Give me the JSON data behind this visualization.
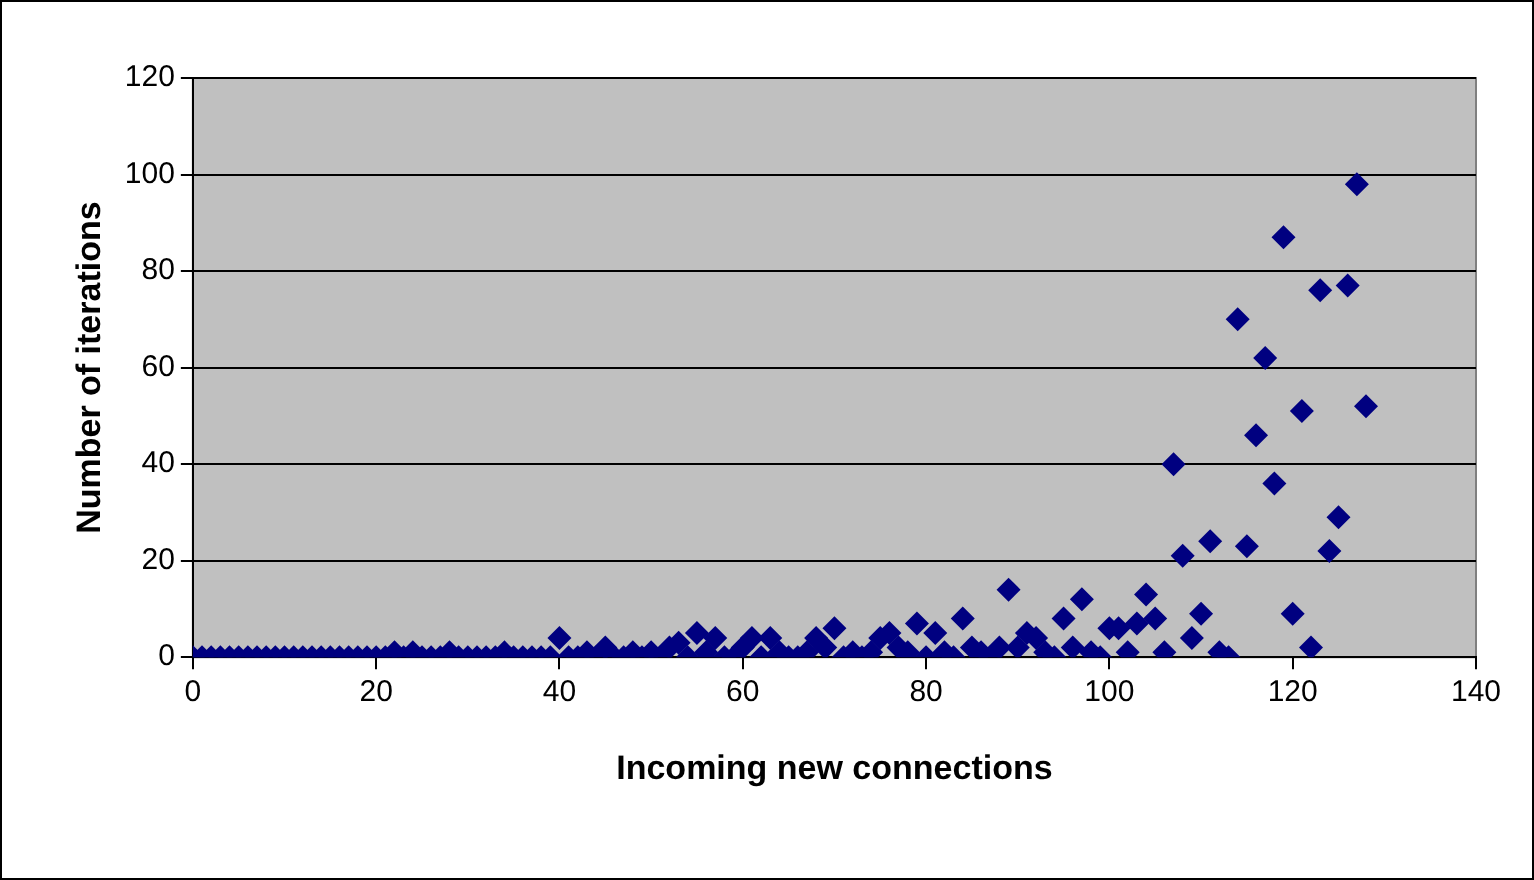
{
  "chart_data": {
    "type": "scatter",
    "xlabel": "Incoming new connections",
    "ylabel": "Number of iterations",
    "marker": "diamond",
    "grid": "y",
    "legend": false,
    "xlim": [
      0,
      140
    ],
    "xticks": [
      0,
      20,
      40,
      60,
      80,
      100,
      120,
      140
    ],
    "ylim": [
      0,
      120
    ],
    "yticks": [
      0,
      20,
      40,
      60,
      80,
      100,
      120
    ],
    "series": [
      {
        "color": "#000080",
        "x": [
          0,
          1,
          2,
          3,
          4,
          5,
          6,
          7,
          8,
          9,
          10,
          11,
          12,
          13,
          14,
          15,
          16,
          17,
          18,
          19,
          20,
          21,
          22,
          23,
          24,
          25,
          26,
          27,
          28,
          29,
          30,
          31,
          32,
          33,
          34,
          35,
          36,
          37,
          38,
          39,
          40,
          41,
          42,
          43,
          44,
          45,
          46,
          47,
          48,
          49,
          50,
          51,
          52,
          53,
          54,
          55,
          56,
          57,
          58,
          59,
          60,
          61,
          62,
          63,
          64,
          65,
          66,
          67,
          68,
          69,
          70,
          71,
          72,
          73,
          74,
          75,
          76,
          77,
          78,
          79,
          80,
          81,
          82,
          83,
          84,
          85,
          86,
          87,
          88,
          89,
          90,
          91,
          92,
          93,
          94,
          95,
          96,
          97,
          98,
          99,
          100,
          101,
          102,
          103,
          104,
          105,
          106,
          107,
          108,
          109,
          110,
          111,
          112,
          113,
          114,
          115,
          116,
          117,
          118,
          119,
          120,
          121,
          122,
          123,
          124,
          125,
          126,
          127,
          128
        ],
        "values": [
          0,
          0,
          0,
          0,
          0,
          0,
          0,
          0,
          0,
          0,
          0,
          0,
          0,
          0,
          0,
          0,
          0,
          0,
          0,
          0,
          0,
          0,
          1,
          0,
          1,
          0,
          0,
          0,
          1,
          0,
          0,
          0,
          0,
          0,
          1,
          0,
          0,
          0,
          0,
          0,
          4,
          0,
          0,
          1,
          0,
          2,
          0,
          0,
          1,
          0,
          1,
          0,
          2,
          3,
          0,
          5,
          1,
          4,
          0,
          0,
          2,
          4,
          0,
          4,
          1,
          0,
          0,
          1,
          4,
          2,
          6,
          0,
          1,
          0,
          1,
          4,
          5,
          2,
          1,
          7,
          0,
          5,
          1,
          0,
          8,
          2,
          1,
          0,
          2,
          14,
          2,
          5,
          4,
          1,
          0,
          8,
          2,
          12,
          1,
          0,
          6,
          6,
          1,
          7,
          13,
          8,
          1,
          40,
          21,
          4,
          9,
          24,
          1,
          0,
          70,
          23,
          46,
          62,
          36,
          87,
          9,
          51,
          2,
          76,
          22,
          29,
          77,
          98,
          52
        ]
      }
    ]
  }
}
